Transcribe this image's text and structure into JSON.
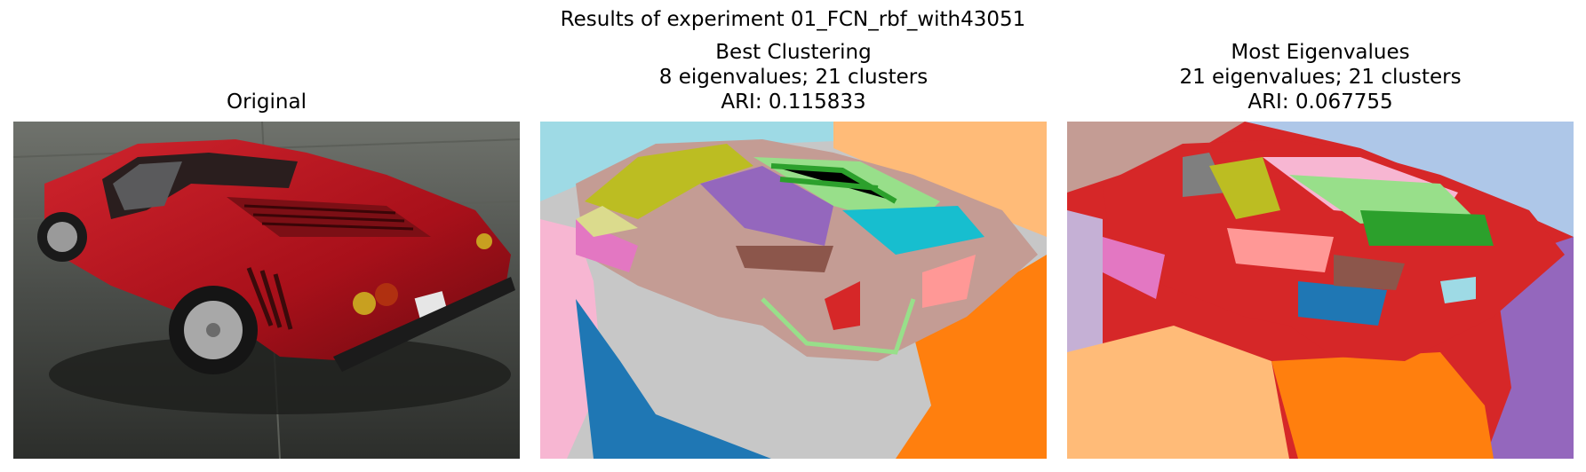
{
  "figure": {
    "suptitle": "Results of experiment 01_FCN_rbf_with43051",
    "panels": [
      {
        "title_lines": [
          "Original"
        ],
        "kind": "photo",
        "subject": "red sports car on wet asphalt"
      },
      {
        "title_lines": [
          "Best Clustering",
          "8 eigenvalues; 21 clusters",
          "ARI: 0.115833"
        ],
        "kind": "segmentation"
      },
      {
        "title_lines": [
          "Most Eigenvalues",
          "21 eigenvalues; 21 clusters",
          "ARI: 0.067755"
        ],
        "kind": "segmentation"
      }
    ]
  },
  "colors": {
    "tab_blue": "#1f77b4",
    "tab_orange": "#ff7f0e",
    "tab_green": "#2ca02c",
    "tab_red": "#d62728",
    "tab_purple": "#9467bd",
    "tab_brown": "#8c564b",
    "tab_pink": "#e377c2",
    "tab_gray": "#7f7f7f",
    "tab_olive": "#bcbd22",
    "tab_cyan": "#17becf",
    "light_blue": "#aec7e8",
    "light_orange": "#ffbb78",
    "light_green": "#98df8a",
    "light_red": "#ff9896",
    "light_purple": "#c5b0d5",
    "light_brown": "#c49c94",
    "light_pink": "#f7b6d2",
    "light_gray": "#c7c7c7",
    "light_olive": "#dbdb8d",
    "light_cyan": "#9edae5",
    "car_red": "#b0121c"
  }
}
